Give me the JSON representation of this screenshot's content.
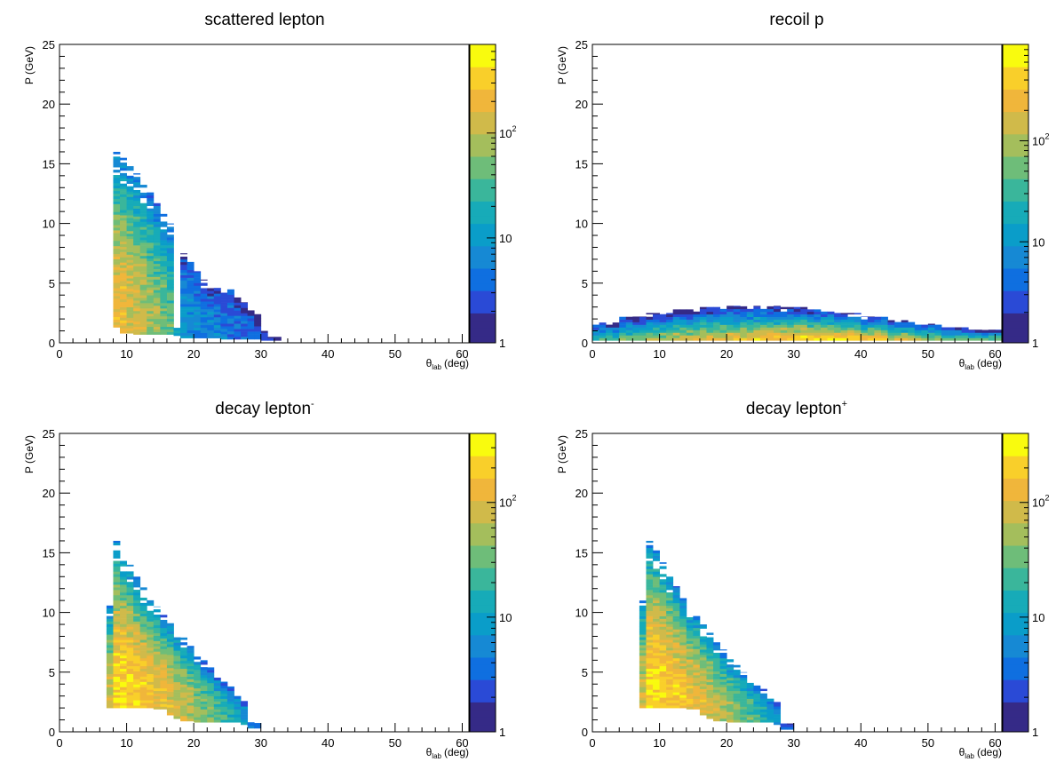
{
  "panels": [
    {
      "title": "scattered lepton",
      "title_sup": "",
      "xlabel_main": "θ",
      "xlabel_sub": "lab",
      "xlabel_unit": "(deg)",
      "ylabel": "P (GeV)"
    },
    {
      "title": "recoil p",
      "title_sup": "",
      "xlabel_main": "θ",
      "xlabel_sub": "lab",
      "xlabel_unit": "(deg)",
      "ylabel": "P (GeV)"
    },
    {
      "title": "decay lepton",
      "title_sup": "-",
      "xlabel_main": "θ",
      "xlabel_sub": "lab",
      "xlabel_unit": "(deg)",
      "ylabel": "P (GeV)"
    },
    {
      "title": "decay lepton",
      "title_sup": "+",
      "xlabel_main": "θ",
      "xlabel_sub": "lab",
      "xlabel_unit": "(deg)",
      "ylabel": "P (GeV)"
    }
  ],
  "palette": [
    "#352a87",
    "#2a4ad6",
    "#0f6fe0",
    "#1689d4",
    "#0a9dc9",
    "#17abb8",
    "#3ab69b",
    "#6ebd79",
    "#a4be5c",
    "#d0ba4a",
    "#f0b63b",
    "#f9cf2a",
    "#f9fb0e"
  ],
  "chart_data": [
    {
      "type": "heatmap",
      "title": "scattered lepton",
      "xlabel": "θlab (deg)",
      "ylabel": "P (GeV)",
      "xlim": [
        0,
        61
      ],
      "ylim": [
        0,
        25
      ],
      "xticks": [
        0,
        10,
        20,
        30,
        40,
        50,
        60
      ],
      "yticks": [
        0,
        5,
        10,
        15,
        20,
        25
      ],
      "colorbar": {
        "scale": "log",
        "ticks": [
          {
            "value": 1,
            "label": "1"
          },
          {
            "value": 10,
            "label": "10"
          },
          {
            "value": 100,
            "label": "10",
            "sup": "2"
          }
        ],
        "max": 700
      },
      "regions": [
        {
          "x": [
            8,
            9
          ],
          "p": [
            1.3,
            16.0
          ],
          "density": 0.78
        },
        {
          "x": [
            9,
            10
          ],
          "p": [
            0.8,
            15.5
          ],
          "density": 0.8
        },
        {
          "x": [
            10,
            11
          ],
          "p": [
            0.8,
            14.8
          ],
          "density": 0.76
        },
        {
          "x": [
            11,
            12
          ],
          "p": [
            0.7,
            14.2
          ],
          "density": 0.73
        },
        {
          "x": [
            12,
            13
          ],
          "p": [
            0.7,
            13.5
          ],
          "density": 0.7
        },
        {
          "x": [
            13,
            14
          ],
          "p": [
            0.7,
            12.6
          ],
          "density": 0.67
        },
        {
          "x": [
            14,
            15
          ],
          "p": [
            0.7,
            11.8
          ],
          "density": 0.63
        },
        {
          "x": [
            15,
            16
          ],
          "p": [
            0.7,
            10.8
          ],
          "density": 0.59
        },
        {
          "x": [
            16,
            17
          ],
          "p": [
            0.7,
            10.0
          ],
          "density": 0.55
        },
        {
          "x": [
            17,
            18
          ],
          "p": [
            0.6,
            1.3
          ],
          "density": 0.38
        },
        {
          "x": [
            18,
            19
          ],
          "p": [
            0.4,
            7.5
          ],
          "density": 0.3
        },
        {
          "x": [
            19,
            20
          ],
          "p": [
            0.4,
            6.8
          ],
          "density": 0.3
        },
        {
          "x": [
            20,
            21
          ],
          "p": [
            0.4,
            6.0
          ],
          "density": 0.29
        },
        {
          "x": [
            21,
            22
          ],
          "p": [
            0.4,
            5.3
          ],
          "density": 0.28
        },
        {
          "x": [
            22,
            23
          ],
          "p": [
            0.4,
            4.9
          ],
          "density": 0.27
        },
        {
          "x": [
            23,
            24
          ],
          "p": [
            0.4,
            4.6
          ],
          "density": 0.26
        },
        {
          "x": [
            24,
            25
          ],
          "p": [
            0.3,
            4.2
          ],
          "density": 0.25
        },
        {
          "x": [
            25,
            26
          ],
          "p": [
            0.3,
            4.6
          ],
          "density": 0.23
        },
        {
          "x": [
            26,
            27
          ],
          "p": [
            0.3,
            3.8
          ],
          "density": 0.21
        },
        {
          "x": [
            27,
            28
          ],
          "p": [
            0.3,
            3.4
          ],
          "density": 0.19
        },
        {
          "x": [
            28,
            29
          ],
          "p": [
            0.3,
            3.1
          ],
          "density": 0.17
        },
        {
          "x": [
            29,
            30
          ],
          "p": [
            0.3,
            2.4
          ],
          "density": 0.14
        },
        {
          "x": [
            30,
            31
          ],
          "p": [
            0.2,
            1.0
          ],
          "density": 0.12
        },
        {
          "x": [
            31,
            33
          ],
          "p": [
            0.2,
            0.5
          ],
          "density": 0.08
        }
      ]
    },
    {
      "type": "heatmap",
      "title": "recoil p",
      "xlabel": "θlab (deg)",
      "ylabel": "P (GeV)",
      "xlim": [
        0,
        61
      ],
      "ylim": [
        0,
        25
      ],
      "xticks": [
        0,
        10,
        20,
        30,
        40,
        50,
        60
      ],
      "yticks": [
        0,
        5,
        10,
        15,
        20,
        25
      ],
      "colorbar": {
        "scale": "log",
        "ticks": [
          {
            "value": 1,
            "label": "1"
          },
          {
            "value": 10,
            "label": "10"
          },
          {
            "value": 100,
            "label": "10",
            "sup": "2"
          }
        ],
        "max": 900
      },
      "regions": [
        {
          "x": [
            0,
            4
          ],
          "p": [
            0.2,
            1.7
          ],
          "density": 0.45
        },
        {
          "x": [
            4,
            8
          ],
          "p": [
            0.2,
            2.2
          ],
          "density": 0.55
        },
        {
          "x": [
            8,
            12
          ],
          "p": [
            0.2,
            2.5
          ],
          "density": 0.62
        },
        {
          "x": [
            12,
            16
          ],
          "p": [
            0.2,
            2.8
          ],
          "density": 0.68
        },
        {
          "x": [
            16,
            20
          ],
          "p": [
            0.2,
            3.0
          ],
          "density": 0.72
        },
        {
          "x": [
            20,
            24
          ],
          "p": [
            0.2,
            3.1
          ],
          "density": 0.76
        },
        {
          "x": [
            24,
            28
          ],
          "p": [
            0.2,
            3.1
          ],
          "density": 0.8
        },
        {
          "x": [
            28,
            32
          ],
          "p": [
            0.2,
            3.0
          ],
          "density": 0.84
        },
        {
          "x": [
            32,
            36
          ],
          "p": [
            0.2,
            2.8
          ],
          "density": 0.86
        },
        {
          "x": [
            36,
            40
          ],
          "p": [
            0.2,
            2.5
          ],
          "density": 0.84
        },
        {
          "x": [
            40,
            44
          ],
          "p": [
            0.2,
            2.2
          ],
          "density": 0.78
        },
        {
          "x": [
            44,
            48
          ],
          "p": [
            0.2,
            1.9
          ],
          "density": 0.7
        },
        {
          "x": [
            48,
            52
          ],
          "p": [
            0.2,
            1.6
          ],
          "density": 0.62
        },
        {
          "x": [
            52,
            56
          ],
          "p": [
            0.2,
            1.3
          ],
          "density": 0.55
        },
        {
          "x": [
            56,
            61
          ],
          "p": [
            0.2,
            1.1
          ],
          "density": 0.48
        }
      ]
    },
    {
      "type": "heatmap",
      "title": "decay lepton-",
      "xlabel": "θlab (deg)",
      "ylabel": "P (GeV)",
      "xlim": [
        0,
        61
      ],
      "ylim": [
        0,
        25
      ],
      "xticks": [
        0,
        10,
        20,
        30,
        40,
        50,
        60
      ],
      "yticks": [
        0,
        5,
        10,
        15,
        20,
        25
      ],
      "colorbar": {
        "scale": "log",
        "ticks": [
          {
            "value": 1,
            "label": "1"
          },
          {
            "value": 10,
            "label": "10"
          },
          {
            "value": 100,
            "label": "10",
            "sup": "2"
          }
        ],
        "max": 400
      },
      "regions": [
        {
          "x": [
            7,
            8
          ],
          "p": [
            2.0,
            11.0
          ],
          "density": 0.72
        },
        {
          "x": [
            8,
            9
          ],
          "p": [
            2.0,
            16.0
          ],
          "density": 0.9
        },
        {
          "x": [
            9,
            10
          ],
          "p": [
            2.0,
            15.0
          ],
          "density": 0.92
        },
        {
          "x": [
            10,
            11
          ],
          "p": [
            2.0,
            14.0
          ],
          "density": 0.9
        },
        {
          "x": [
            11,
            12
          ],
          "p": [
            2.0,
            13.0
          ],
          "density": 0.88
        },
        {
          "x": [
            12,
            13
          ],
          "p": [
            2.0,
            12.1
          ],
          "density": 0.86
        },
        {
          "x": [
            13,
            14
          ],
          "p": [
            2.0,
            11.2
          ],
          "density": 0.84
        },
        {
          "x": [
            14,
            15
          ],
          "p": [
            1.9,
            10.5
          ],
          "density": 0.82
        },
        {
          "x": [
            15,
            16
          ],
          "p": [
            1.9,
            9.8
          ],
          "density": 0.8
        },
        {
          "x": [
            16,
            17
          ],
          "p": [
            1.4,
            9.2
          ],
          "density": 0.78
        },
        {
          "x": [
            17,
            18
          ],
          "p": [
            1.1,
            8.5
          ],
          "density": 0.75
        },
        {
          "x": [
            18,
            19
          ],
          "p": [
            0.9,
            7.9
          ],
          "density": 0.72
        },
        {
          "x": [
            19,
            20
          ],
          "p": [
            0.9,
            7.2
          ],
          "density": 0.69
        },
        {
          "x": [
            20,
            21
          ],
          "p": [
            0.8,
            6.6
          ],
          "density": 0.66
        },
        {
          "x": [
            21,
            22
          ],
          "p": [
            0.8,
            6.0
          ],
          "density": 0.62
        },
        {
          "x": [
            22,
            23
          ],
          "p": [
            0.8,
            5.4
          ],
          "density": 0.58
        },
        {
          "x": [
            23,
            24
          ],
          "p": [
            0.8,
            4.8
          ],
          "density": 0.54
        },
        {
          "x": [
            24,
            25
          ],
          "p": [
            0.8,
            4.2
          ],
          "density": 0.5
        },
        {
          "x": [
            25,
            26
          ],
          "p": [
            0.8,
            3.8
          ],
          "density": 0.45
        },
        {
          "x": [
            26,
            27
          ],
          "p": [
            0.8,
            3.3
          ],
          "density": 0.4
        },
        {
          "x": [
            27,
            28
          ],
          "p": [
            0.6,
            2.6
          ],
          "density": 0.33
        },
        {
          "x": [
            28,
            30
          ],
          "p": [
            0.3,
            0.8
          ],
          "density": 0.2
        }
      ]
    },
    {
      "type": "heatmap",
      "title": "decay lepton+",
      "xlabel": "θlab (deg)",
      "ylabel": "P (GeV)",
      "xlim": [
        0,
        61
      ],
      "ylim": [
        0,
        25
      ],
      "xticks": [
        0,
        10,
        20,
        30,
        40,
        50,
        60
      ],
      "yticks": [
        0,
        5,
        10,
        15,
        20,
        25
      ],
      "colorbar": {
        "scale": "log",
        "ticks": [
          {
            "value": 1,
            "label": "1"
          },
          {
            "value": 10,
            "label": "10"
          },
          {
            "value": 100,
            "label": "10",
            "sup": "2"
          }
        ],
        "max": 400
      },
      "regions": [
        {
          "x": [
            7,
            8
          ],
          "p": [
            2.0,
            11.0
          ],
          "density": 0.72
        },
        {
          "x": [
            8,
            9
          ],
          "p": [
            2.0,
            16.0
          ],
          "density": 0.9
        },
        {
          "x": [
            9,
            10
          ],
          "p": [
            2.0,
            15.2
          ],
          "density": 0.92
        },
        {
          "x": [
            10,
            11
          ],
          "p": [
            2.0,
            14.2
          ],
          "density": 0.9
        },
        {
          "x": [
            11,
            12
          ],
          "p": [
            2.0,
            13.2
          ],
          "density": 0.88
        },
        {
          "x": [
            12,
            13
          ],
          "p": [
            2.0,
            12.2
          ],
          "density": 0.86
        },
        {
          "x": [
            13,
            14
          ],
          "p": [
            2.0,
            11.2
          ],
          "density": 0.84
        },
        {
          "x": [
            14,
            15
          ],
          "p": [
            1.9,
            10.4
          ],
          "density": 0.82
        },
        {
          "x": [
            15,
            16
          ],
          "p": [
            1.9,
            9.7
          ],
          "density": 0.8
        },
        {
          "x": [
            16,
            17
          ],
          "p": [
            1.4,
            9.0
          ],
          "density": 0.78
        },
        {
          "x": [
            17,
            18
          ],
          "p": [
            1.1,
            8.3
          ],
          "density": 0.75
        },
        {
          "x": [
            18,
            19
          ],
          "p": [
            0.9,
            7.6
          ],
          "density": 0.72
        },
        {
          "x": [
            19,
            20
          ],
          "p": [
            0.9,
            6.9
          ],
          "density": 0.69
        },
        {
          "x": [
            20,
            21
          ],
          "p": [
            0.8,
            6.3
          ],
          "density": 0.66
        },
        {
          "x": [
            21,
            22
          ],
          "p": [
            0.8,
            5.6
          ],
          "density": 0.62
        },
        {
          "x": [
            22,
            23
          ],
          "p": [
            0.8,
            5.0
          ],
          "density": 0.58
        },
        {
          "x": [
            23,
            24
          ],
          "p": [
            0.8,
            4.5
          ],
          "density": 0.54
        },
        {
          "x": [
            24,
            25
          ],
          "p": [
            0.8,
            4.0
          ],
          "density": 0.5
        },
        {
          "x": [
            25,
            26
          ],
          "p": [
            0.8,
            3.6
          ],
          "density": 0.45
        },
        {
          "x": [
            26,
            27
          ],
          "p": [
            0.8,
            3.1
          ],
          "density": 0.4
        },
        {
          "x": [
            27,
            28
          ],
          "p": [
            0.6,
            2.5
          ],
          "density": 0.33
        },
        {
          "x": [
            28,
            30
          ],
          "p": [
            0.2,
            0.7
          ],
          "density": 0.2
        }
      ]
    }
  ]
}
